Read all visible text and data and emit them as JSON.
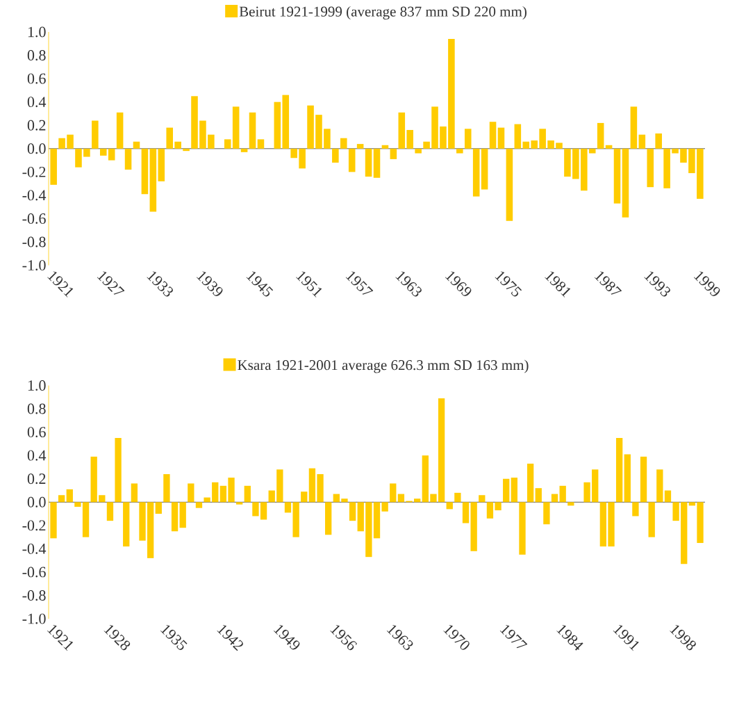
{
  "chart_data": [
    {
      "type": "bar",
      "legend": "top",
      "ylim": [
        -1,
        1
      ],
      "yticks": [
        {
          "value": -1,
          "label": "-1.0"
        },
        {
          "value": -0.8,
          "label": "-0.8"
        },
        {
          "value": -0.6,
          "label": "-0.6"
        },
        {
          "value": -0.4,
          "label": "-0.4"
        },
        {
          "value": -0.2,
          "label": "-0.2"
        },
        {
          "value": 0,
          "label": "0.0"
        },
        {
          "value": 0.2,
          "label": "0.2"
        },
        {
          "value": 0.4,
          "label": "0.4"
        },
        {
          "value": 0.6,
          "label": "0.6"
        },
        {
          "value": 0.8,
          "label": "0.8"
        },
        {
          "value": 1,
          "label": "1.0"
        }
      ],
      "categories": [
        "1921",
        null,
        null,
        null,
        null,
        null,
        "1927",
        null,
        null,
        null,
        null,
        null,
        "1933",
        null,
        null,
        null,
        null,
        null,
        "1939",
        null,
        null,
        null,
        null,
        null,
        "1945",
        null,
        null,
        null,
        null,
        null,
        "1951",
        null,
        null,
        null,
        null,
        null,
        "1957",
        null,
        null,
        null,
        null,
        null,
        "1963",
        null,
        null,
        null,
        null,
        null,
        "1969",
        null,
        null,
        null,
        null,
        null,
        "1975",
        null,
        null,
        null,
        null,
        null,
        "1981",
        null,
        null,
        null,
        null,
        null,
        "1987",
        null,
        null,
        null,
        null,
        null,
        "1993",
        null,
        null,
        null,
        null,
        null,
        "1999"
      ],
      "series": [
        {
          "name": "Beirut 1921-1999 (average 837 mm SD 220 mm)",
          "color": "#ffcc00",
          "values": [
            -0.31,
            0.09,
            0.12,
            -0.16,
            -0.07,
            0.24,
            -0.06,
            -0.1,
            0.31,
            -0.18,
            0.06,
            -0.39,
            -0.54,
            -0.28,
            0.18,
            0.06,
            -0.02,
            0.45,
            0.24,
            0.12,
            0,
            0.08,
            0.36,
            -0.03,
            0.31,
            0.08,
            0,
            0.4,
            0.46,
            -0.08,
            -0.17,
            0.37,
            0.29,
            0.17,
            -0.12,
            0.09,
            -0.2,
            0.04,
            -0.24,
            -0.25,
            0.03,
            -0.09,
            0.31,
            0.16,
            -0.04,
            0.06,
            0.36,
            0.19,
            0.94,
            -0.04,
            0.17,
            -0.41,
            -0.35,
            0.23,
            0.18,
            -0.62,
            0.21,
            0.06,
            0.07,
            0.17,
            0.07,
            0.05,
            -0.24,
            -0.26,
            -0.36,
            -0.04,
            0.22,
            0.03,
            -0.47,
            -0.59,
            0.36,
            0.12,
            -0.33,
            0.13,
            -0.34,
            -0.04,
            -0.12,
            -0.21,
            -0.43
          ]
        }
      ]
    },
    {
      "type": "bar",
      "legend": "top",
      "ylim": [
        -1,
        1
      ],
      "yticks": [
        {
          "value": -1,
          "label": "-1.0"
        },
        {
          "value": -0.8,
          "label": "-0.8"
        },
        {
          "value": -0.6,
          "label": "-0.6"
        },
        {
          "value": -0.4,
          "label": "-0.4"
        },
        {
          "value": -0.2,
          "label": "-0.2"
        },
        {
          "value": 0,
          "label": "0.0"
        },
        {
          "value": 0.2,
          "label": "0.2"
        },
        {
          "value": 0.4,
          "label": "0.4"
        },
        {
          "value": 0.6,
          "label": "0.6"
        },
        {
          "value": 0.8,
          "label": "0.8"
        },
        {
          "value": 1,
          "label": "1.0"
        }
      ],
      "categories": [
        "1921",
        null,
        null,
        null,
        null,
        null,
        null,
        "1928",
        null,
        null,
        null,
        null,
        null,
        null,
        "1935",
        null,
        null,
        null,
        null,
        null,
        null,
        "1942",
        null,
        null,
        null,
        null,
        null,
        null,
        "1949",
        null,
        null,
        null,
        null,
        null,
        null,
        "1956",
        null,
        null,
        null,
        null,
        null,
        null,
        "1963",
        null,
        null,
        null,
        null,
        null,
        null,
        "1970",
        null,
        null,
        null,
        null,
        null,
        null,
        "1977",
        null,
        null,
        null,
        null,
        null,
        null,
        "1984",
        null,
        null,
        null,
        null,
        null,
        null,
        "1991",
        null,
        null,
        null,
        null,
        null,
        null,
        "1998",
        null,
        null,
        null
      ],
      "series": [
        {
          "name": "Ksara 1921-2001 average 626.3 mm SD 163 mm)",
          "color": "#ffcc00",
          "values": [
            -0.31,
            0.06,
            0.11,
            -0.04,
            -0.3,
            0.39,
            0.06,
            -0.16,
            0.55,
            -0.38,
            0.16,
            -0.33,
            -0.48,
            -0.1,
            0.24,
            -0.25,
            -0.22,
            0.16,
            -0.05,
            0.04,
            0.17,
            0.14,
            0.21,
            -0.02,
            0.14,
            -0.12,
            -0.15,
            0.1,
            0.28,
            -0.09,
            -0.3,
            0.09,
            0.29,
            0.24,
            -0.28,
            0.07,
            0.03,
            -0.16,
            -0.25,
            -0.47,
            -0.31,
            -0.08,
            0.16,
            0.07,
            0.01,
            0.03,
            0.4,
            0.07,
            0.89,
            -0.06,
            0.08,
            -0.18,
            -0.42,
            0.06,
            -0.14,
            -0.07,
            0.2,
            0.21,
            -0.45,
            0.33,
            0.12,
            -0.19,
            0.07,
            0.14,
            -0.03,
            0,
            0.17,
            0.28,
            -0.38,
            -0.38,
            0.55,
            0.41,
            -0.12,
            0.39,
            -0.3,
            0.28,
            0.1,
            -0.16,
            -0.53,
            -0.03,
            -0.35
          ]
        }
      ]
    }
  ]
}
